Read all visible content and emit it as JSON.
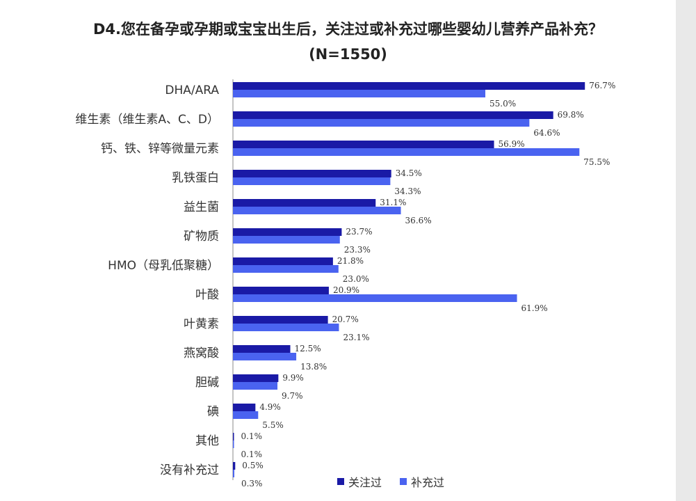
{
  "chart_data": {
    "type": "bar",
    "orientation": "horizontal",
    "title": "D4.您在备孕或孕期或宝宝出生后，关注过或补充过哪些婴幼儿营养产品补充？",
    "subtitle": "(N=1550)",
    "categories": [
      "DHA/ARA",
      "维生素（维生素A、C、D）",
      "钙、铁、锌等微量元素",
      "乳铁蛋白",
      "益生菌",
      "矿物质",
      "HMO（母乳低聚糖）",
      "叶酸",
      "叶黄素",
      "燕窝酸",
      "胆碱",
      "碘",
      "其他",
      "没有补充过"
    ],
    "series": [
      {
        "name": "关注过",
        "color": "#1a1aa6",
        "values": [
          76.7,
          69.8,
          56.9,
          34.5,
          31.1,
          23.7,
          21.8,
          20.9,
          20.7,
          12.5,
          9.9,
          4.9,
          0.1,
          0.5
        ]
      },
      {
        "name": "补充过",
        "color": "#4a63f0",
        "values": [
          55.0,
          64.6,
          75.5,
          34.3,
          36.6,
          23.3,
          23.0,
          61.9,
          23.1,
          13.8,
          9.7,
          5.5,
          0.1,
          0.3
        ]
      }
    ],
    "value_suffix": "%",
    "xlim": [
      0,
      100
    ],
    "legend_position": "bottom",
    "grid": false
  }
}
